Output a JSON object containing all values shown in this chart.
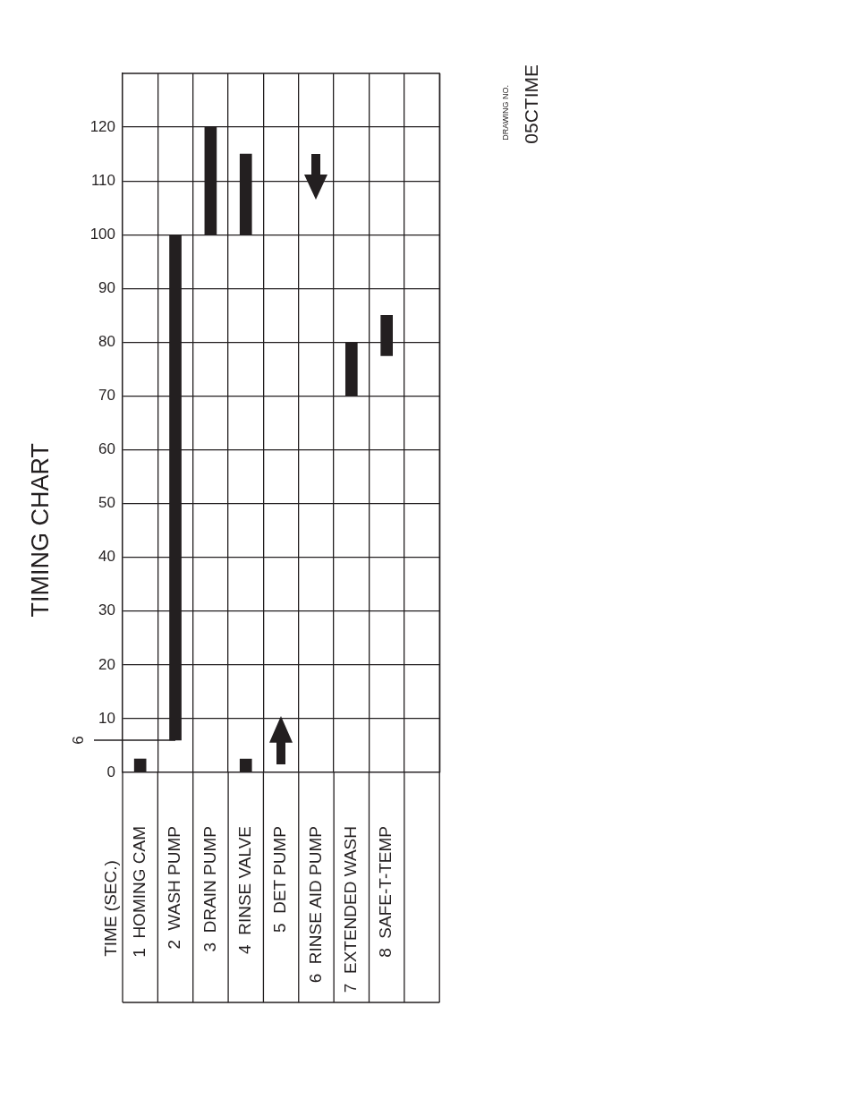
{
  "chart_data": {
    "type": "bar",
    "title": "TIMING CHART",
    "ylabel": "TIME (SEC.)",
    "categories": [
      "1  HOMING CAM",
      "2  WASH PUMP",
      "3  DRAIN PUMP",
      "4  RINSE VALVE",
      "5  DET PUMP",
      "6  RINSE AID PUMP",
      "7  EXTENDED WASH",
      "8  SAFE-T-TEMP",
      null
    ],
    "series": [
      {
        "color": "#231f20",
        "base": [
          0,
          6,
          100,
          0,
          null,
          null,
          70,
          77.5,
          null
        ],
        "values": [
          2.5,
          94,
          20,
          2.5,
          null,
          null,
          10,
          7.5,
          null
        ]
      },
      {
        "color": "#231f20",
        "base": [
          null,
          null,
          null,
          100,
          null,
          null,
          null,
          null,
          null
        ],
        "values": [
          null,
          null,
          null,
          15,
          null,
          null,
          null,
          null,
          null
        ]
      }
    ],
    "ylim": [
      0,
      130
    ],
    "yticks": [
      0,
      10,
      20,
      30,
      40,
      50,
      60,
      70,
      80,
      90,
      100,
      110,
      120
    ],
    "grid": true,
    "ref_lines": [
      {
        "axis": "y",
        "value": 6,
        "label": "6"
      }
    ],
    "annotations": [
      "DRAWING NO.",
      "05CTIME"
    ]
  }
}
